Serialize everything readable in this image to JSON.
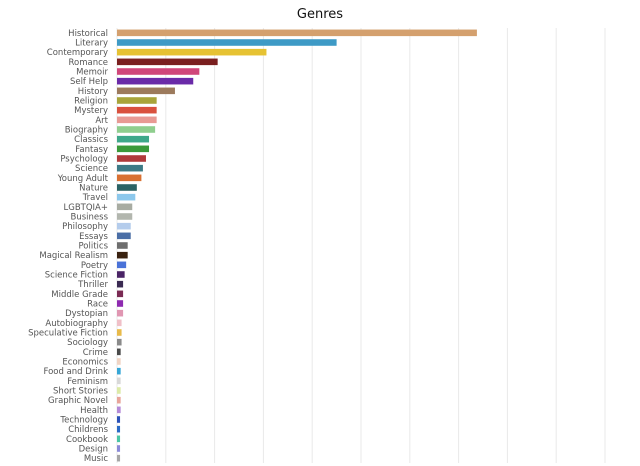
{
  "chart_data": {
    "type": "bar",
    "orientation": "horizontal",
    "title": "Genres",
    "xlabel": "",
    "ylabel": "",
    "grid": true,
    "x_axis_tick_labels_shown": false,
    "xlim": [
      0,
      160
    ],
    "categories": [
      "Historical",
      "Literary",
      "Contemporary",
      "Romance",
      "Memoir",
      "Self Help",
      "History",
      "Religion",
      "Mystery",
      "Art",
      "Biography",
      "Classics",
      "Fantasy",
      "Psychology",
      "Science",
      "Young Adult",
      "Nature",
      "Travel",
      "LGBTQIA+",
      "Business",
      "Philosophy",
      "Essays",
      "Politics",
      "Magical Realism",
      "Poetry",
      "Science Fiction",
      "Thriller",
      "Middle Grade",
      "Race",
      "Dystopian",
      "Autobiography",
      "Speculative Fiction",
      "Sociology",
      "Crime",
      "Economics",
      "Food and Drink",
      "Feminism",
      "Short Stories",
      "Graphic Novel",
      "Health",
      "Technology",
      "Childrens",
      "Cookbook",
      "Design",
      "Music"
    ],
    "values": [
      118,
      72,
      49,
      33,
      27,
      25,
      19,
      13,
      13,
      13,
      12.5,
      10.5,
      10.5,
      9.5,
      8.5,
      8,
      6.5,
      6,
      5,
      5,
      4.5,
      4.5,
      3.5,
      3.5,
      3,
      2.5,
      2,
      2,
      2,
      2,
      1.5,
      1.5,
      1.5,
      1.2,
      1.2,
      1.2,
      1.2,
      1.2,
      1.2,
      1.2,
      1,
      1,
      1,
      1,
      1
    ],
    "colors": [
      "#d4a06e",
      "#3e9ac6",
      "#e6c233",
      "#7a1f1f",
      "#d0467a",
      "#6a2aa8",
      "#9c7a5c",
      "#a8a43a",
      "#d9513e",
      "#e89a94",
      "#8fce8e",
      "#3ea88a",
      "#3a9a3a",
      "#b03a3a",
      "#3d7a86",
      "#d87032",
      "#2a6264",
      "#8cc8ec",
      "#a8aca2",
      "#b2b6ae",
      "#b4ccec",
      "#4a6ea6",
      "#6e6e6e",
      "#3a2210",
      "#4a72d8",
      "#4a2466",
      "#3a2a52",
      "#7a2a54",
      "#8e2ab0",
      "#e096b2",
      "#f0c0c8",
      "#e8ba4a",
      "#8a8a8a",
      "#4a4a4a",
      "#f0d4c4",
      "#36a6d6",
      "#d8d8d8",
      "#dceaa6",
      "#e8a49a",
      "#b48ad8",
      "#2a52b8",
      "#2a6ac6",
      "#4ac6a6",
      "#8a8ad8",
      "#a6a6a6"
    ]
  }
}
